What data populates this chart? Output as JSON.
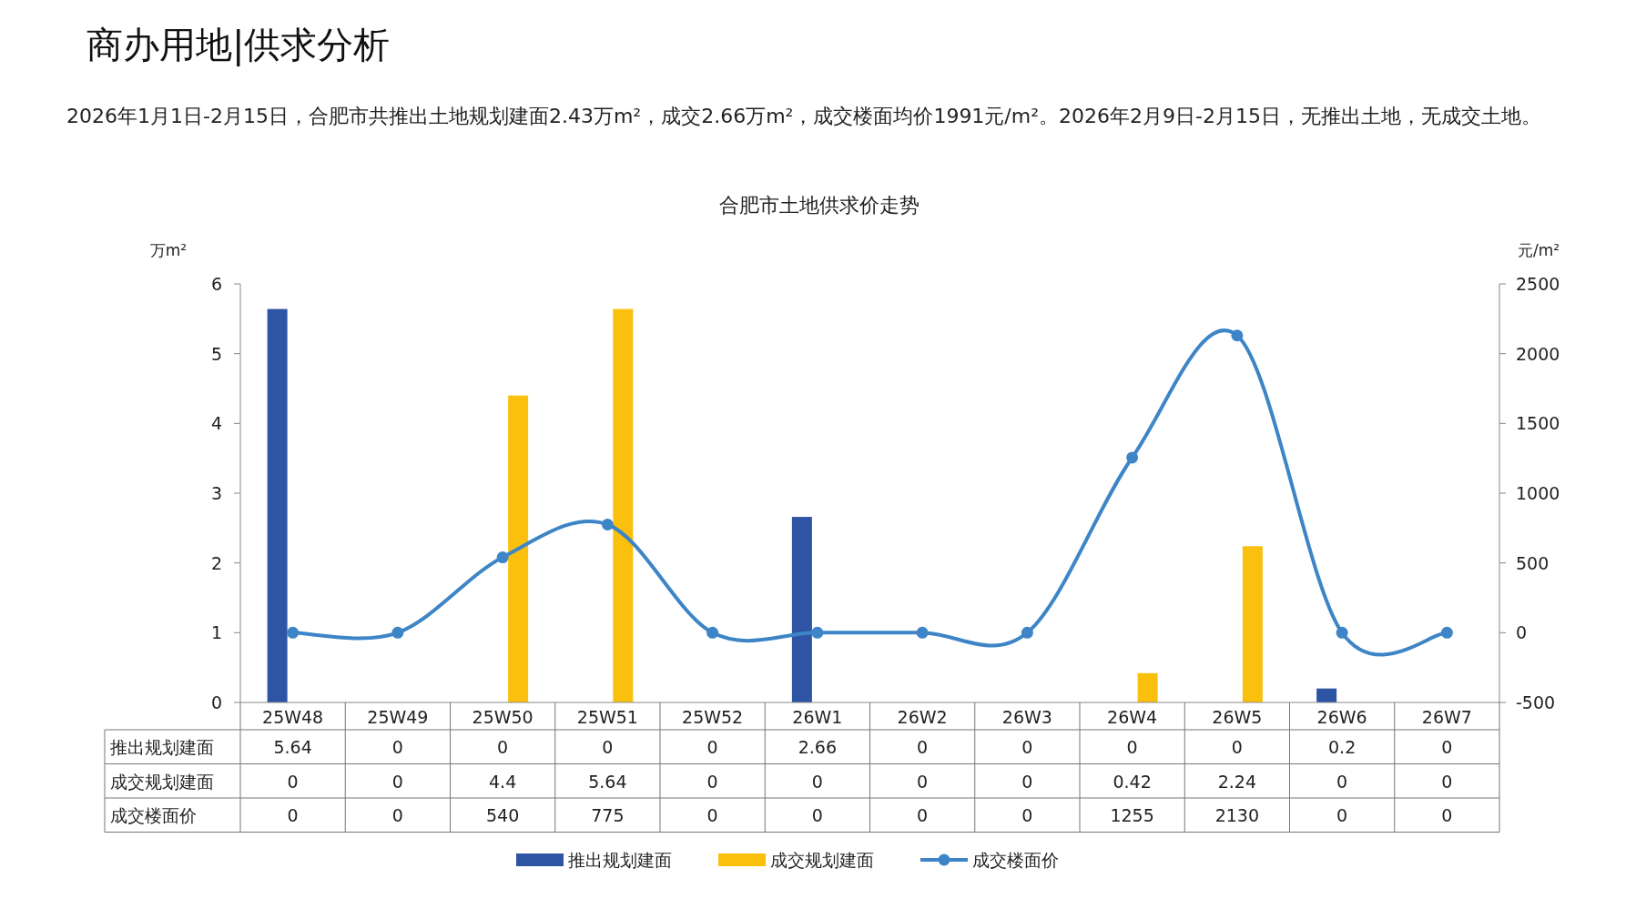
{
  "chart_data": {
    "type": "bar",
    "title": "商办用地|供求分析",
    "subtitle": "合肥市土地供求价走势",
    "annotations": [
      "2026年1月1日-2月15日，合肥市共推出土地规划建面2.43万m²，成交2.66万m²，成交楼面均价1991元/m²。2026年2月9日-2月15日，无推出土地，无成交土地。"
    ],
    "ylabel": "万m²",
    "y2label": "元/m²",
    "categories": [
      "25W48",
      "25W49",
      "25W50",
      "25W51",
      "25W52",
      "26W1",
      "26W2",
      "26W3",
      "26W4",
      "26W5",
      "26W6",
      "26W7"
    ],
    "ylim": [
      0,
      6
    ],
    "yticks": [
      0,
      1,
      2,
      3,
      4,
      5,
      6
    ],
    "y2lim": [
      -500,
      2500
    ],
    "y2ticks": [
      -500,
      0,
      500,
      1000,
      1500,
      2000,
      2500
    ],
    "series": [
      {
        "name": "推出规划建面",
        "color": "#2e54a4",
        "values": [
          5.64,
          0,
          0,
          0,
          0,
          2.66,
          0,
          0,
          0,
          0,
          0.2,
          0
        ]
      },
      {
        "name": "成交规划建面",
        "color": "#fbc00e",
        "values": [
          0,
          0,
          4.4,
          5.64,
          0,
          0,
          0,
          0,
          0.42,
          2.24,
          0,
          0
        ]
      },
      {
        "name": "成交楼面价",
        "type": "line",
        "axis": "y2",
        "color": "#3d85c6",
        "marker": "circle",
        "values": [
          0,
          0,
          540,
          775,
          0,
          0,
          0,
          0,
          1255,
          2130,
          0,
          0
        ]
      }
    ],
    "data_labels": true,
    "legend": "bottom",
    "grid": false
  }
}
